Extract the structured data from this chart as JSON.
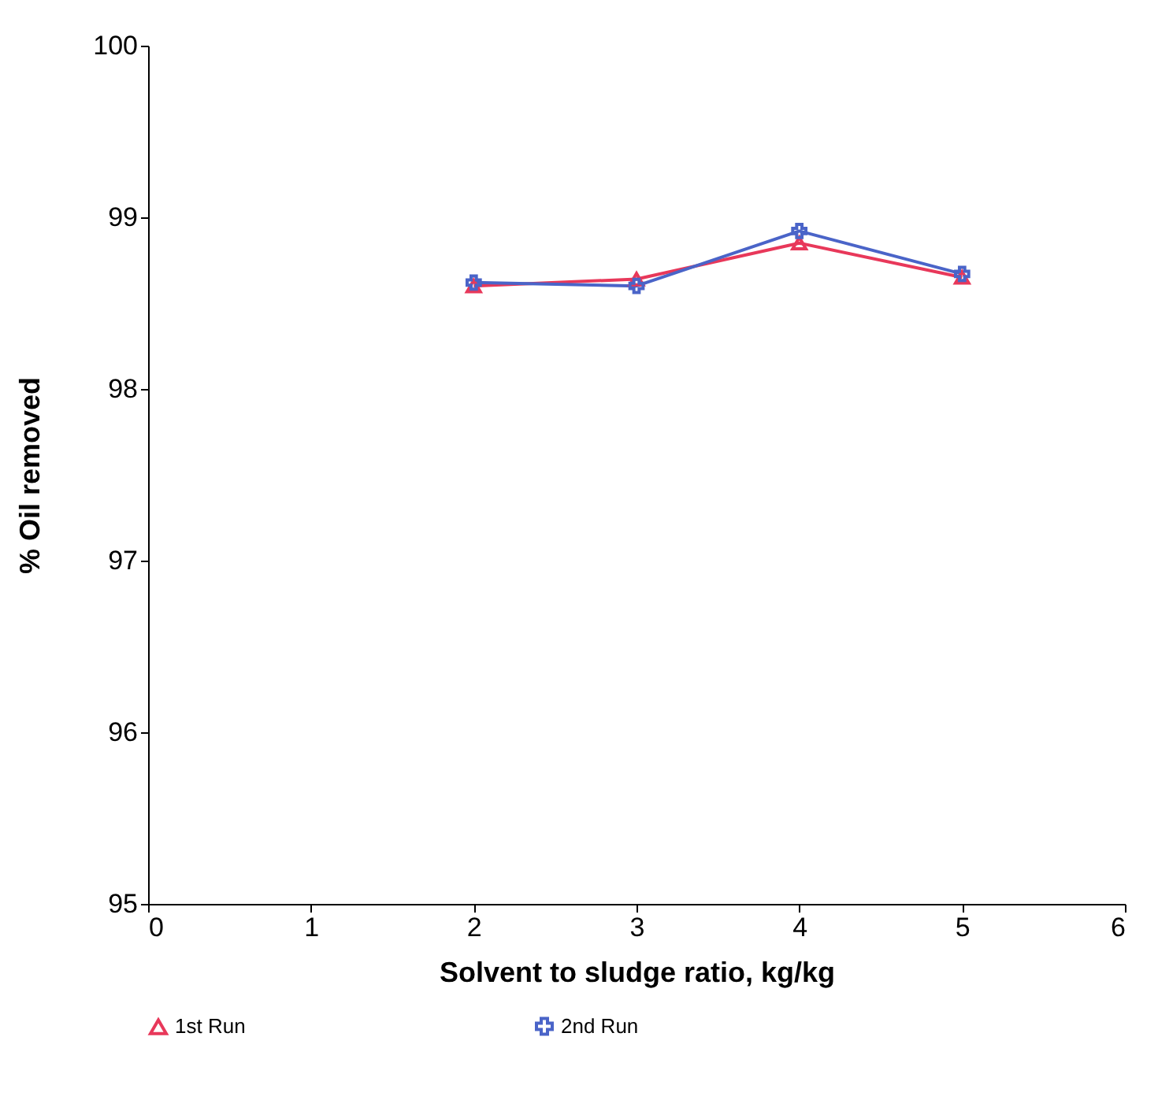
{
  "chart_data": {
    "type": "line",
    "xlabel": "Solvent to sludge ratio, kg/kg",
    "ylabel": "% Oil removed",
    "x": [
      2,
      3,
      4,
      5
    ],
    "series": [
      {
        "name": "1st Run",
        "color": "#e8385a",
        "marker": "triangle",
        "values": [
          98.6,
          98.64,
          98.85,
          98.65
        ]
      },
      {
        "name": "2nd Run",
        "color": "#4a64c8",
        "marker": "cross",
        "values": [
          98.62,
          98.6,
          98.92,
          98.67
        ]
      }
    ],
    "xlim": [
      0,
      6
    ],
    "xticks": [
      0,
      1,
      2,
      3,
      4,
      5,
      6
    ],
    "ylim": [
      95,
      100
    ],
    "yticks": [
      95,
      96,
      97,
      98,
      99,
      100
    ],
    "grid": false,
    "legend": "bottom"
  }
}
